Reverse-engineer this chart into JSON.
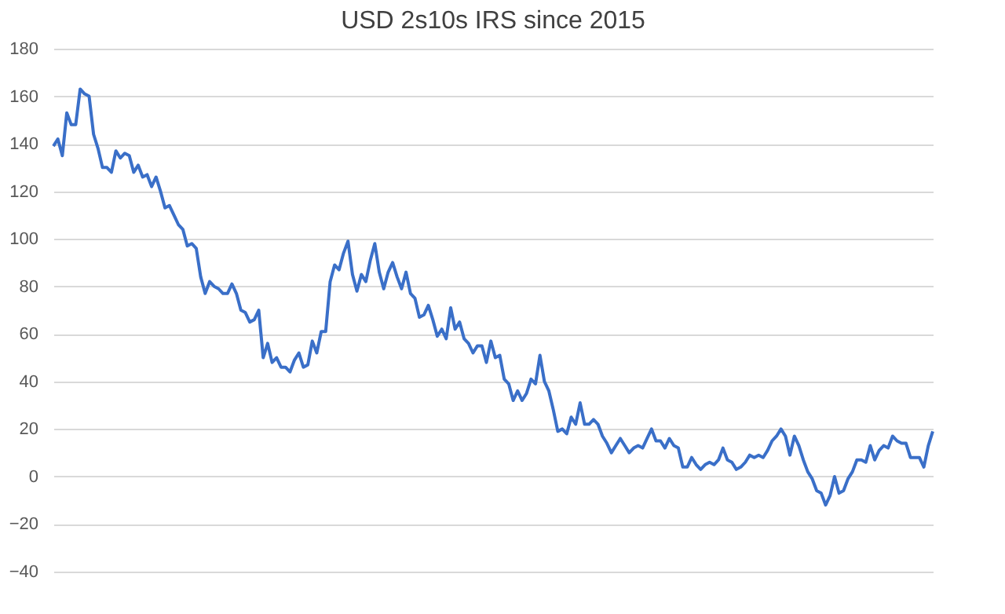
{
  "chart_data": {
    "type": "line",
    "title": "USD 2s10s IRS since 2015",
    "categories": [
      null,
      null,
      null,
      null,
      null,
      null,
      null,
      null,
      null,
      null,
      null,
      null,
      null,
      null,
      null,
      null,
      null,
      null,
      null,
      null,
      null,
      null,
      null,
      null,
      null,
      null,
      null,
      null,
      null,
      null,
      null,
      null,
      null,
      null,
      null,
      null,
      null,
      null,
      null,
      null,
      null,
      null,
      null,
      null,
      null,
      null,
      null,
      null,
      null,
      null,
      null,
      null,
      null,
      null,
      null,
      null,
      null,
      null,
      null,
      null,
      null,
      null,
      null,
      null,
      null,
      null,
      null,
      null,
      null,
      null,
      null,
      null,
      null,
      null,
      null,
      null,
      null,
      null,
      null,
      null,
      null,
      null,
      null,
      null,
      null,
      null,
      null,
      null,
      null,
      null,
      null,
      null,
      null,
      null,
      null,
      null,
      null,
      null,
      null,
      null,
      null,
      null,
      null,
      null,
      null,
      null,
      null,
      null,
      null,
      null,
      null,
      null,
      null,
      null,
      null,
      null,
      null,
      null,
      null,
      null,
      null,
      null,
      null,
      null,
      null,
      null,
      null,
      null,
      null,
      null,
      null,
      null,
      null,
      null,
      null,
      null,
      null,
      null,
      null,
      null,
      null,
      null,
      null,
      null,
      null,
      null,
      null,
      null,
      null,
      null,
      null,
      null,
      null,
      null,
      null,
      null,
      null,
      null,
      null,
      null,
      null,
      null,
      null,
      null,
      null,
      null,
      null,
      null,
      null,
      null,
      null,
      null,
      null,
      null,
      null,
      null,
      null,
      null,
      null,
      null,
      null,
      null,
      null,
      null,
      null,
      null,
      null,
      null,
      null,
      null,
      null,
      null,
      null,
      null,
      null,
      null,
      null,
      null
    ],
    "series": [
      {
        "color": "#3a6fc8",
        "values": [
          139,
          142,
          135,
          153,
          148,
          148,
          163,
          161,
          160,
          144,
          138,
          130,
          130,
          128,
          137,
          134,
          136,
          135,
          128,
          131,
          126,
          127,
          122,
          126,
          120,
          113,
          114,
          110,
          106,
          104,
          97,
          98,
          96,
          84,
          77,
          82,
          80,
          79,
          77,
          77,
          81,
          77,
          70,
          69,
          65,
          66,
          70,
          50,
          56,
          48,
          50,
          46,
          46,
          44,
          49,
          52,
          46,
          47,
          57,
          52,
          61,
          61,
          82,
          89,
          87,
          94,
          99,
          85,
          78,
          85,
          82,
          91,
          98,
          86,
          79,
          86,
          90,
          84,
          79,
          86,
          77,
          75,
          67,
          68,
          72,
          66,
          59,
          62,
          58,
          71,
          62,
          65,
          58,
          56,
          52,
          55,
          55,
          48,
          57,
          50,
          51,
          41,
          39,
          32,
          36,
          32,
          35,
          41,
          39,
          51,
          40,
          36,
          28,
          19,
          20,
          18,
          25,
          22,
          31,
          22,
          22,
          24,
          22,
          17,
          14,
          10,
          13,
          16,
          13,
          10,
          12,
          13,
          12,
          16,
          20,
          15,
          15,
          12,
          16,
          13,
          12,
          4,
          4,
          8,
          5,
          3,
          5,
          6,
          5,
          7,
          12,
          7,
          6,
          3,
          4,
          6,
          9,
          8,
          9,
          8,
          11,
          15,
          17,
          20,
          17,
          9,
          17,
          13,
          7,
          2,
          -1,
          -6,
          -7,
          -12,
          -8,
          0,
          -7,
          -6,
          -1,
          2,
          7,
          7,
          6,
          13,
          7,
          11,
          13,
          12,
          17,
          15,
          14,
          14,
          8,
          8,
          8,
          4,
          13,
          19
        ]
      }
    ],
    "ylim": [
      -40,
      180
    ],
    "yticks": [
      -40,
      -20,
      0,
      20,
      40,
      60,
      80,
      100,
      120,
      140,
      160,
      180
    ],
    "grid": "y",
    "tick_labels": "y",
    "line_style": "solid"
  }
}
